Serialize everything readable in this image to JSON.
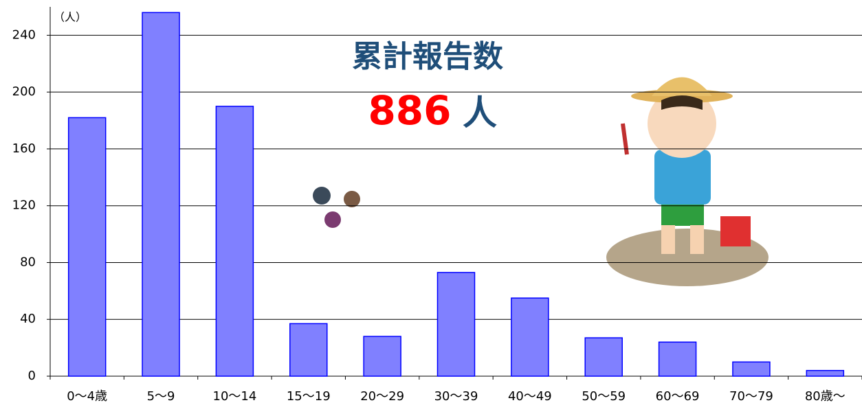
{
  "chart_data": {
    "type": "bar",
    "title": "累計報告数",
    "total": 886,
    "total_unit": "人",
    "y_unit": "（人）",
    "categories": [
      "0〜4歳",
      "5〜9",
      "10〜14",
      "15〜19",
      "20〜29",
      "30〜39",
      "40〜49",
      "50〜59",
      "60〜69",
      "70〜79",
      "80歳〜"
    ],
    "values": [
      182,
      256,
      190,
      37,
      28,
      73,
      55,
      27,
      24,
      10,
      4
    ],
    "color": "#8080ff",
    "edge_color": "#0000ff",
    "ylim": [
      0,
      260
    ],
    "yticks": [
      0,
      40,
      80,
      120,
      160,
      200,
      240
    ],
    "grid": true
  }
}
